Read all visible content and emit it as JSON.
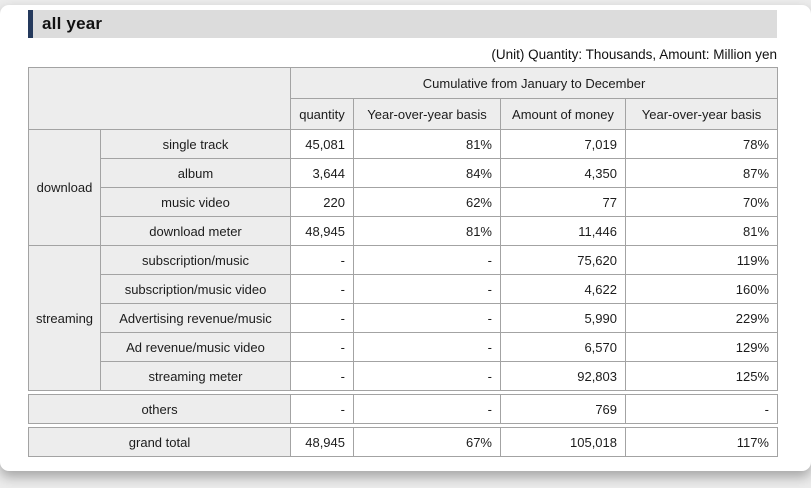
{
  "page": {
    "title": "all year",
    "unit_note": "(Unit) Quantity: Thousands, Amount: Million yen"
  },
  "chart_data": {
    "type": "table",
    "title": "all year",
    "unit_note": "(Unit) Quantity: Thousands, Amount: Million yen",
    "header": {
      "group_span": "Cumulative from January to December",
      "columns": [
        "quantity",
        "Year-over-year basis",
        "Amount of money",
        "Year-over-year basis"
      ]
    },
    "groups": [
      {
        "name": "download",
        "rows": [
          {
            "label": "single track",
            "quantity": "45,081",
            "qty_yoy": "81%",
            "amount": "7,019",
            "amt_yoy": "78%"
          },
          {
            "label": "album",
            "quantity": "3,644",
            "qty_yoy": "84%",
            "amount": "4,350",
            "amt_yoy": "87%"
          },
          {
            "label": "music video",
            "quantity": "220",
            "qty_yoy": "62%",
            "amount": "77",
            "amt_yoy": "70%"
          },
          {
            "label": "download meter",
            "quantity": "48,945",
            "qty_yoy": "81%",
            "amount": "11,446",
            "amt_yoy": "81%"
          }
        ]
      },
      {
        "name": "streaming",
        "rows": [
          {
            "label": "subscription/music",
            "quantity": "-",
            "qty_yoy": "-",
            "amount": "75,620",
            "amt_yoy": "119%"
          },
          {
            "label": "subscription/music video",
            "quantity": "-",
            "qty_yoy": "-",
            "amount": "4,622",
            "amt_yoy": "160%"
          },
          {
            "label": "Advertising revenue/music",
            "quantity": "-",
            "qty_yoy": "-",
            "amount": "5,990",
            "amt_yoy": "229%"
          },
          {
            "label": "Ad revenue/music video",
            "quantity": "-",
            "qty_yoy": "-",
            "amount": "6,570",
            "amt_yoy": "129%"
          },
          {
            "label": "streaming meter",
            "quantity": "-",
            "qty_yoy": "-",
            "amount": "92,803",
            "amt_yoy": "125%"
          }
        ]
      }
    ],
    "summary_rows": [
      {
        "label": "others",
        "quantity": "-",
        "qty_yoy": "-",
        "amount": "769",
        "amt_yoy": "-"
      },
      {
        "label": "grand total",
        "quantity": "48,945",
        "qty_yoy": "67%",
        "amount": "105,018",
        "amt_yoy": "117%"
      }
    ]
  },
  "colors": {
    "accent_bar": "#24395c",
    "title_bg": "#dcdcdc",
    "header_cell_bg": "#ededed",
    "border": "#a3a3a3",
    "text": "#1c1c1c",
    "page_bg": "#ececec",
    "card_bg": "#ffffff"
  }
}
